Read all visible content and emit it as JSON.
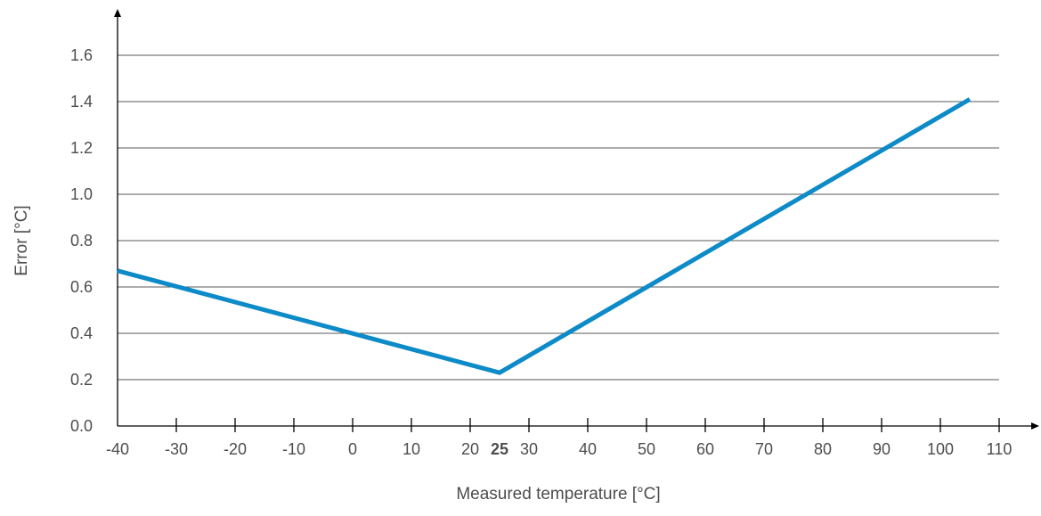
{
  "chart_data": {
    "type": "line",
    "title": "",
    "xlabel": "Measured temperature [°C]",
    "ylabel": "Error [°C]",
    "xlim": [
      -40,
      110
    ],
    "ylim": [
      0,
      1.7
    ],
    "x_ticks": [
      {
        "value": -40,
        "label": "-40"
      },
      {
        "value": -30,
        "label": "-30"
      },
      {
        "value": -20,
        "label": "-20"
      },
      {
        "value": -10,
        "label": "-10"
      },
      {
        "value": 0,
        "label": "0"
      },
      {
        "value": 10,
        "label": "10"
      },
      {
        "value": 20,
        "label": "20"
      },
      {
        "value": 25,
        "label": "25",
        "bold": true
      },
      {
        "value": 30,
        "label": "30"
      },
      {
        "value": 40,
        "label": "40"
      },
      {
        "value": 50,
        "label": "50"
      },
      {
        "value": 60,
        "label": "60"
      },
      {
        "value": 70,
        "label": "70"
      },
      {
        "value": 80,
        "label": "80"
      },
      {
        "value": 90,
        "label": "90"
      },
      {
        "value": 100,
        "label": "100"
      },
      {
        "value": 110,
        "label": "110"
      }
    ],
    "y_ticks": [
      {
        "value": 0.0,
        "label": "0.0"
      },
      {
        "value": 0.2,
        "label": "0.2"
      },
      {
        "value": 0.4,
        "label": "0.4"
      },
      {
        "value": 0.6,
        "label": "0.6"
      },
      {
        "value": 0.8,
        "label": "0.8"
      },
      {
        "value": 1.0,
        "label": "1.0"
      },
      {
        "value": 1.2,
        "label": "1.2"
      },
      {
        "value": 1.4,
        "label": "1.4"
      },
      {
        "value": 1.6,
        "label": "1.6"
      }
    ],
    "grid": "horizontal",
    "legend": "none",
    "series": [
      {
        "color": "#0d8ac8",
        "points": [
          {
            "x": -40,
            "y": 0.67
          },
          {
            "x": 25,
            "y": 0.23
          },
          {
            "x": 105,
            "y": 1.41
          }
        ]
      }
    ]
  }
}
